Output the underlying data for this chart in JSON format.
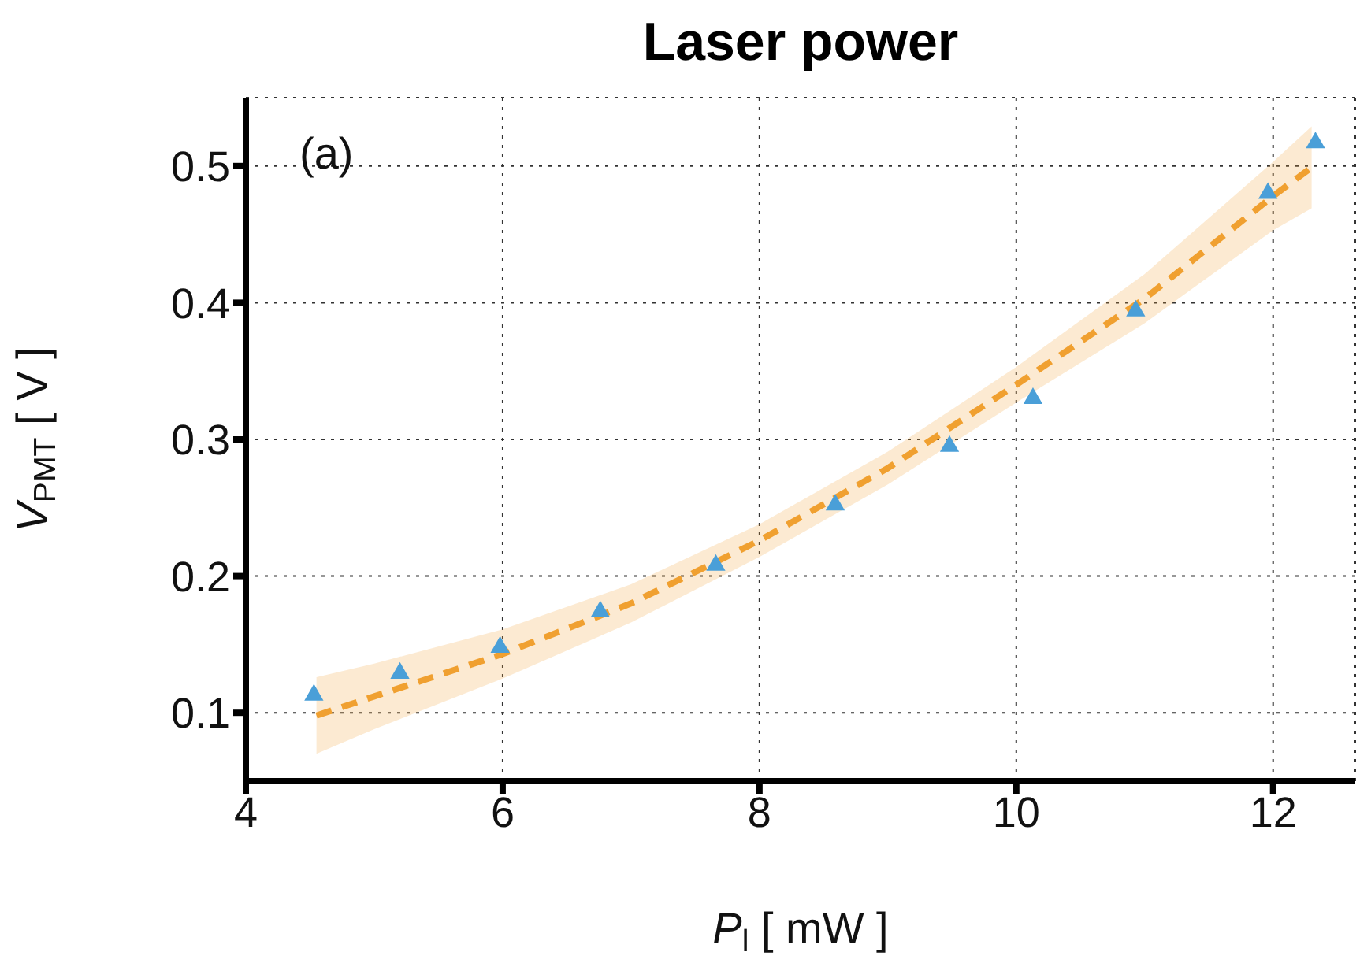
{
  "chart_data": {
    "type": "scatter",
    "title": "Laser power",
    "xlabel": "P$_{l}$ [ mW ]",
    "ylabel": "V$_{PMT}$ [ V ]",
    "annotations": [
      "(a)"
    ],
    "xlim": [
      4,
      12.64
    ],
    "xticks": [
      4,
      6,
      8,
      10,
      12
    ],
    "ylim": [
      0.05,
      0.55
    ],
    "yticks": [
      0.1,
      0.2,
      0.3,
      0.4,
      0.5
    ],
    "grid": true,
    "legend": false,
    "series": [
      {
        "type": "line",
        "color": "#f0a030",
        "line_style": "dashed",
        "marker": "none",
        "x": [
          4.55,
          5,
          6,
          7,
          8,
          9,
          10,
          11,
          12,
          12.3
        ],
        "values": [
          0.098,
          0.112,
          0.143,
          0.18,
          0.226,
          0.279,
          0.34,
          0.403,
          0.478,
          0.499
        ],
        "lower": [
          0.07,
          0.088,
          0.125,
          0.166,
          0.214,
          0.267,
          0.327,
          0.385,
          0.453,
          0.469
        ],
        "upper": [
          0.126,
          0.136,
          0.161,
          0.194,
          0.238,
          0.291,
          0.353,
          0.421,
          0.503,
          0.529
        ]
      },
      {
        "color": "#4a9fd8",
        "marker": "triangle",
        "x": [
          4.53,
          5.2,
          5.98,
          6.76,
          7.66,
          8.59,
          9.48,
          10.13,
          10.93,
          11.96,
          12.33
        ],
        "values": [
          0.113,
          0.129,
          0.148,
          0.174,
          0.208,
          0.252,
          0.295,
          0.33,
          0.394,
          0.48,
          0.517
        ]
      }
    ]
  }
}
